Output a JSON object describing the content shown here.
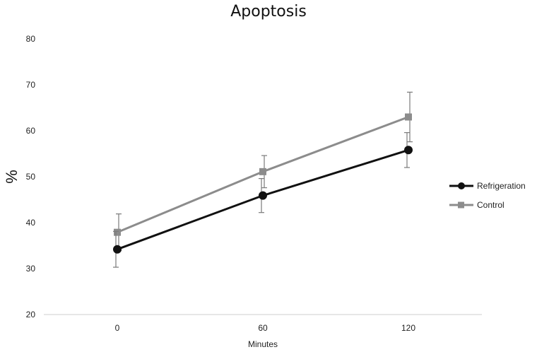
{
  "chart_data": {
    "type": "line",
    "title": "Apoptosis",
    "xlabel": "Minutes",
    "ylabel": "%",
    "x": [
      0,
      60,
      120
    ],
    "x_tick_labels": [
      "0",
      "60",
      "120"
    ],
    "ylim": [
      20,
      80
    ],
    "y_ticks": [
      20,
      30,
      40,
      50,
      60,
      70,
      80
    ],
    "grid": false,
    "legend_position": "right",
    "series": [
      {
        "name": "Refrigeration",
        "values": [
          34.2,
          45.9,
          55.8
        ],
        "error": [
          3.9,
          3.7,
          3.8
        ],
        "marker": "circle",
        "color": "#111111"
      },
      {
        "name": "Control",
        "values": [
          37.9,
          51.1,
          63.0
        ],
        "error": [
          4.0,
          3.5,
          5.4
        ],
        "marker": "square",
        "color": "#8c8c8c"
      }
    ]
  }
}
